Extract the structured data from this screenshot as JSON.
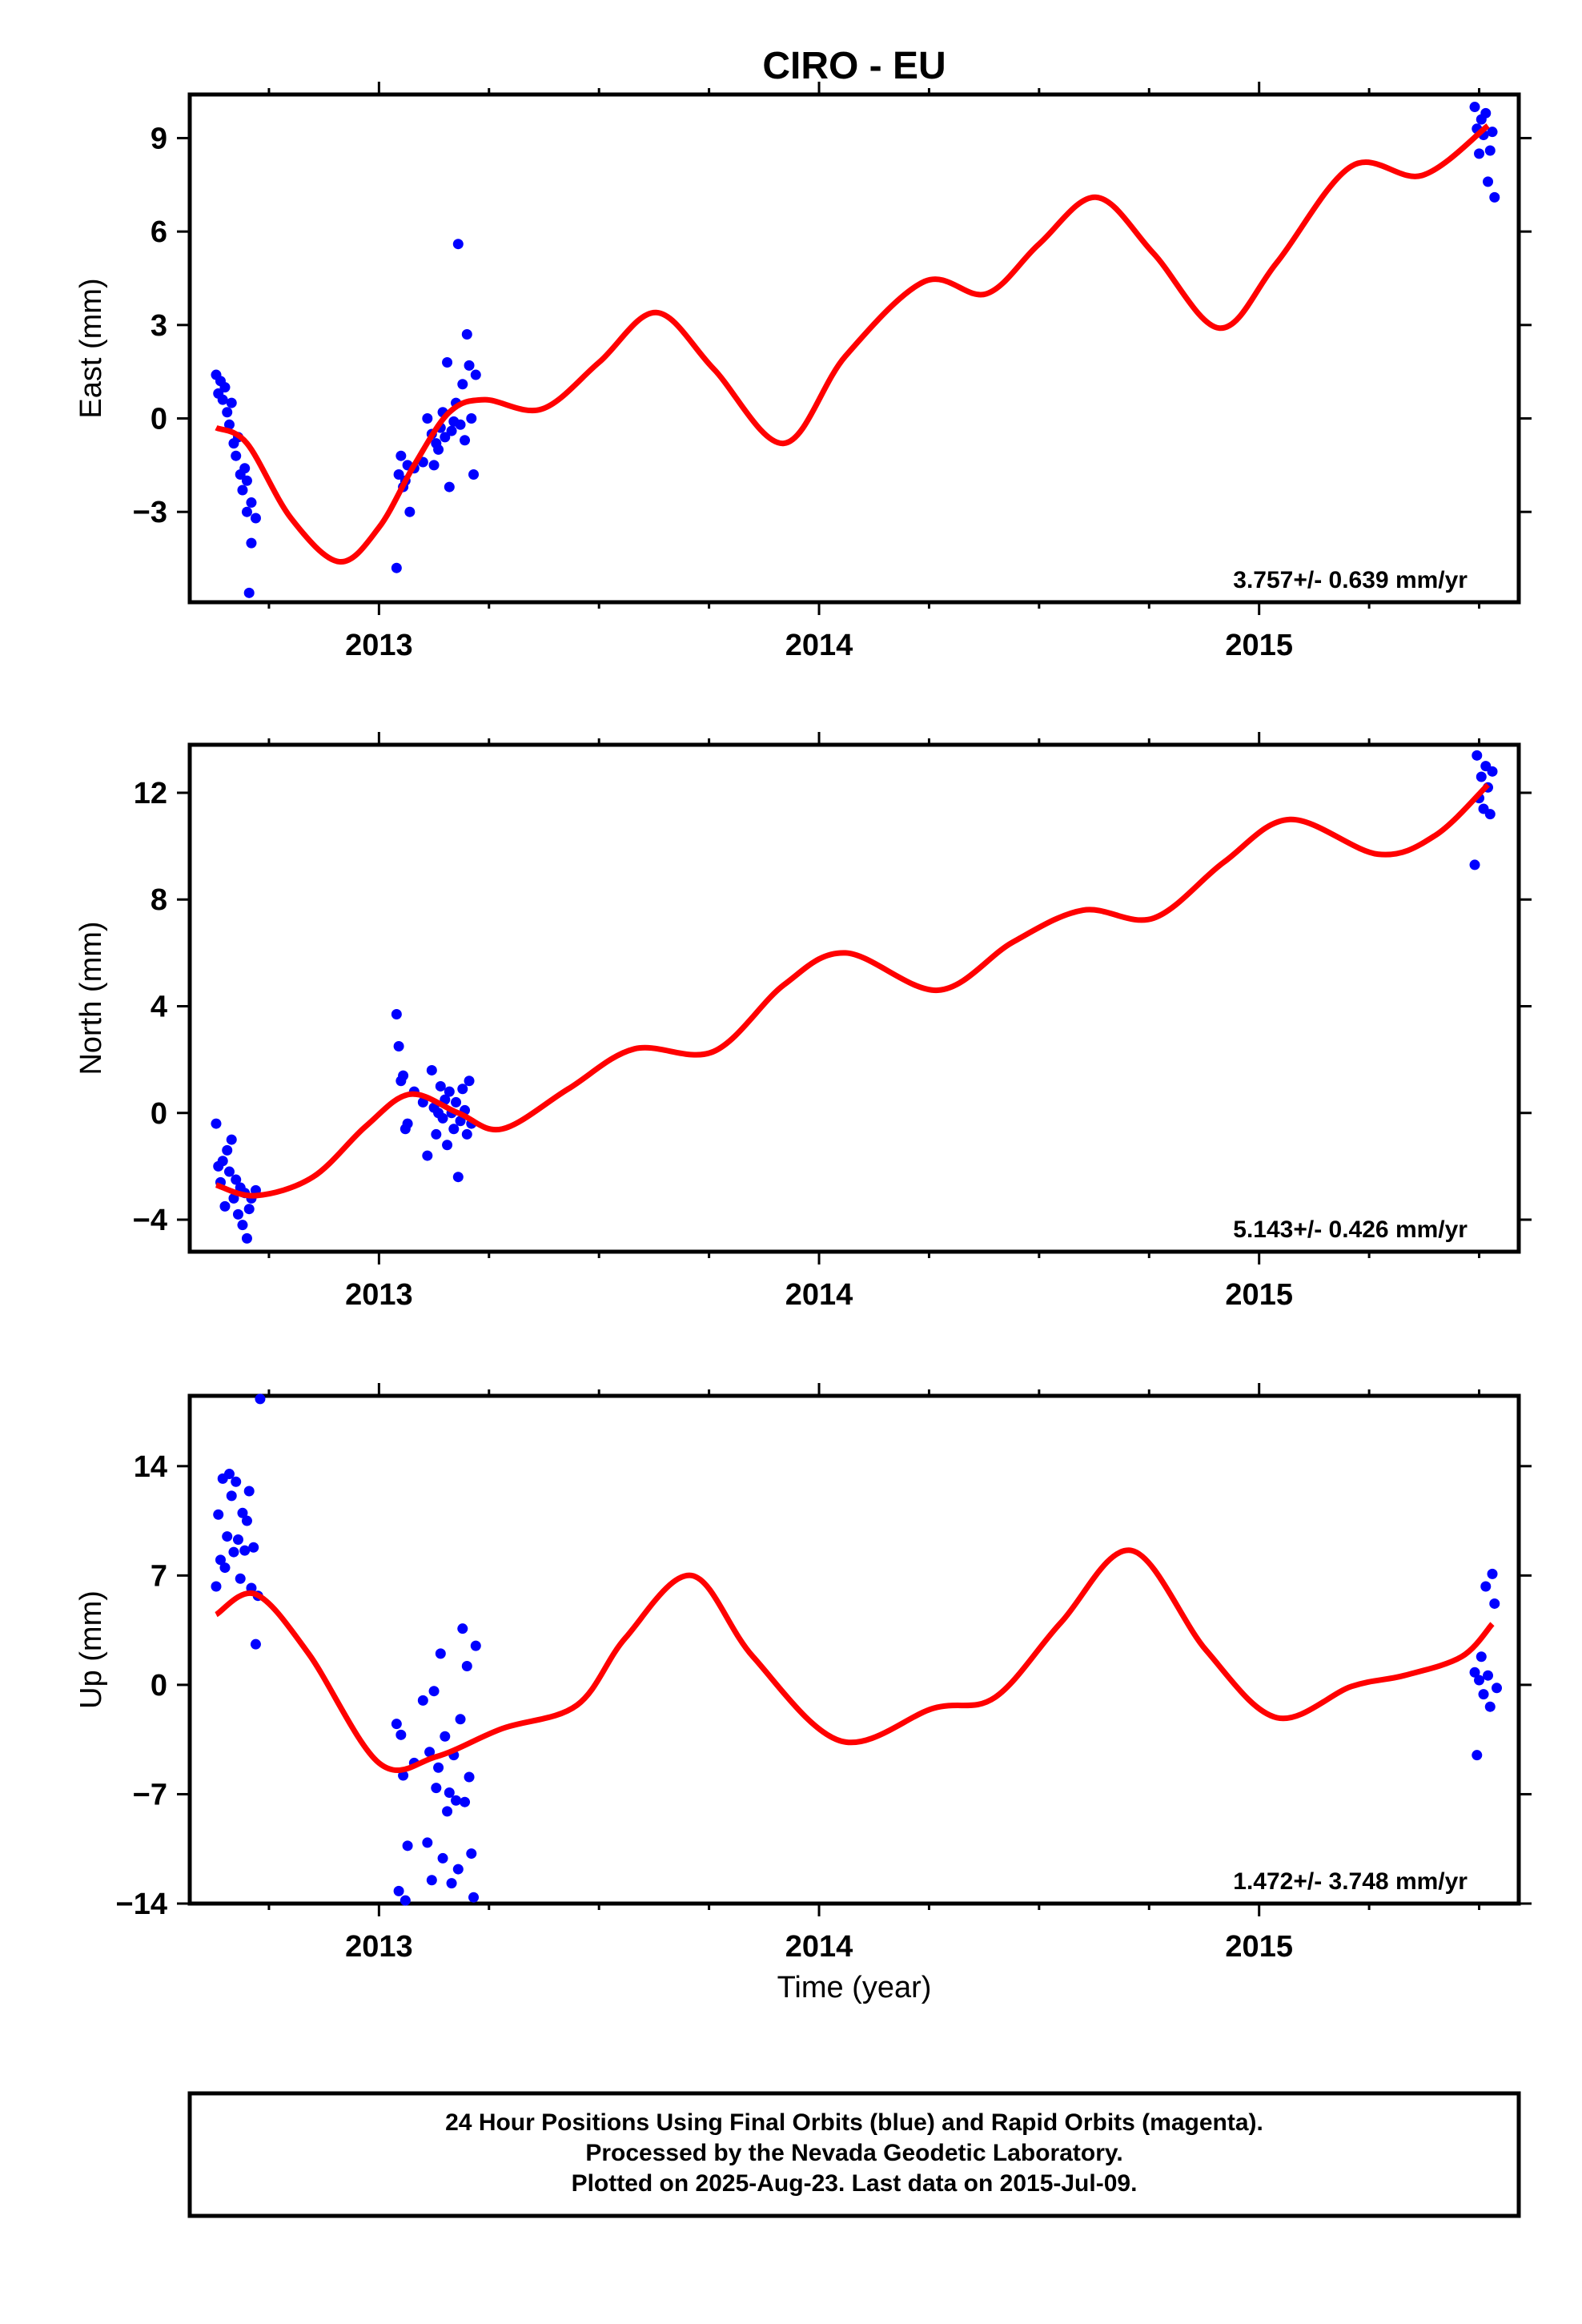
{
  "title": "CIRO - EU",
  "xlabel": "Time (year)",
  "footer": [
    "24 Hour Positions Using Final Orbits (blue) and Rapid Orbits (magenta).",
    "Processed by the Nevada Geodetic Laboratory.",
    "Plotted on 2025-Aug-23. Last data on 2015-Jul-09."
  ],
  "colors": {
    "data": "#0000ff",
    "model": "#ff0000",
    "frame": "#000000"
  },
  "chart_data": [
    {
      "type": "scatter",
      "ylabel": "East (mm)",
      "rate": "3.757+/- 0.639 mm/yr",
      "xlim": [
        2012.57,
        2015.59
      ],
      "ylim": [
        -5.9,
        10.4
      ],
      "xticks": [
        2013,
        2014,
        2015
      ],
      "yticks": [
        -3,
        0,
        3,
        6,
        9
      ],
      "grid": false,
      "series": [
        {
          "kind": "points",
          "x": [
            2012.63,
            2012.635,
            2012.64,
            2012.645,
            2012.65,
            2012.655,
            2012.66,
            2012.665,
            2012.67,
            2012.675,
            2012.68,
            2012.685,
            2012.69,
            2012.695,
            2012.7,
            2012.7,
            2012.705,
            2012.71,
            2012.71,
            2012.72,
            2013.04,
            2013.045,
            2013.05,
            2013.055,
            2013.06,
            2013.065,
            2013.07,
            2013.08,
            2013.1,
            2013.11,
            2013.12,
            2013.125,
            2013.13,
            2013.135,
            2013.14,
            2013.145,
            2013.15,
            2013.155,
            2013.16,
            2013.165,
            2013.17,
            2013.175,
            2013.18,
            2013.185,
            2013.19,
            2013.195,
            2013.2,
            2013.205,
            2013.21,
            2013.215,
            2013.22,
            2015.49,
            2015.495,
            2015.5,
            2015.505,
            2015.51,
            2015.515,
            2015.52,
            2015.525,
            2015.53,
            2015.535
          ],
          "y": [
            1.4,
            0.8,
            1.2,
            0.6,
            1.0,
            0.2,
            -0.2,
            0.5,
            -0.8,
            -1.2,
            -0.6,
            -1.8,
            -2.3,
            -1.6,
            -2.0,
            -3.0,
            -5.6,
            -2.7,
            -4.0,
            -3.2,
            -4.8,
            -1.8,
            -1.2,
            -2.2,
            -2.0,
            -1.5,
            -3.0,
            -1.6,
            -1.4,
            0.0,
            -0.5,
            -1.5,
            -0.8,
            -1.0,
            -0.3,
            0.2,
            -0.6,
            1.8,
            -2.2,
            -0.4,
            -0.1,
            0.5,
            5.6,
            -0.2,
            1.1,
            -0.7,
            2.7,
            1.7,
            0.0,
            -1.8,
            1.4,
            10.0,
            9.3,
            8.5,
            9.6,
            9.1,
            9.8,
            7.6,
            8.6,
            9.2,
            7.1
          ]
        },
        {
          "kind": "line",
          "x": [
            2012.63,
            2012.7,
            2012.8,
            2012.91,
            2013.0,
            2013.08,
            2013.16,
            2013.24,
            2013.37,
            2013.5,
            2013.63,
            2013.76,
            2013.92,
            2014.06,
            2014.24,
            2014.38,
            2014.5,
            2014.63,
            2014.76,
            2014.91,
            2015.04,
            2015.21,
            2015.37,
            2015.52
          ],
          "y": [
            -0.3,
            -0.8,
            -3.2,
            -4.6,
            -3.5,
            -1.5,
            0.2,
            0.6,
            0.3,
            1.8,
            3.4,
            1.6,
            -0.8,
            2.0,
            4.4,
            4.0,
            5.6,
            7.1,
            5.3,
            2.9,
            5.0,
            8.1,
            7.8,
            9.4
          ]
        }
      ]
    },
    {
      "type": "scatter",
      "ylabel": "North (mm)",
      "rate": "5.143+/- 0.426 mm/yr",
      "xlim": [
        2012.57,
        2015.59
      ],
      "ylim": [
        -5.2,
        13.8
      ],
      "xticks": [
        2013,
        2014,
        2015
      ],
      "yticks": [
        -4,
        0,
        4,
        8,
        12
      ],
      "grid": false,
      "series": [
        {
          "kind": "points",
          "x": [
            2012.63,
            2012.635,
            2012.64,
            2012.645,
            2012.65,
            2012.655,
            2012.66,
            2012.665,
            2012.67,
            2012.675,
            2012.68,
            2012.685,
            2012.69,
            2012.695,
            2012.7,
            2012.705,
            2012.71,
            2012.72,
            2013.04,
            2013.045,
            2013.05,
            2013.055,
            2013.06,
            2013.065,
            2013.08,
            2013.1,
            2013.11,
            2013.12,
            2013.125,
            2013.13,
            2013.135,
            2013.14,
            2013.145,
            2013.15,
            2013.155,
            2013.16,
            2013.165,
            2013.17,
            2013.175,
            2013.18,
            2013.185,
            2013.19,
            2013.195,
            2013.2,
            2013.205,
            2013.21,
            2015.49,
            2015.495,
            2015.5,
            2015.505,
            2015.51,
            2015.515,
            2015.52,
            2015.525,
            2015.53
          ],
          "y": [
            -0.4,
            -2.0,
            -2.6,
            -1.8,
            -3.5,
            -1.4,
            -2.2,
            -1.0,
            -3.2,
            -2.5,
            -3.8,
            -2.8,
            -4.2,
            -3.0,
            -4.7,
            -3.6,
            -3.2,
            -2.9,
            3.7,
            2.5,
            1.2,
            1.4,
            -0.6,
            -0.4,
            0.8,
            0.4,
            -1.6,
            1.6,
            0.2,
            -0.8,
            0.0,
            1.0,
            -0.2,
            0.5,
            -1.2,
            0.8,
            0.0,
            -0.6,
            0.4,
            -2.4,
            -0.3,
            0.9,
            0.1,
            -0.8,
            1.2,
            -0.4,
            9.3,
            13.4,
            11.8,
            12.6,
            11.4,
            13.0,
            12.2,
            11.2,
            12.8
          ]
        },
        {
          "kind": "line",
          "x": [
            2012.63,
            2012.72,
            2012.85,
            2012.97,
            2013.07,
            2013.18,
            2013.28,
            2013.43,
            2013.58,
            2013.76,
            2013.92,
            2014.06,
            2014.27,
            2014.44,
            2014.6,
            2014.76,
            2014.92,
            2015.07,
            2015.27,
            2015.4,
            2015.52
          ],
          "y": [
            -2.7,
            -3.1,
            -2.4,
            -0.5,
            0.7,
            0.0,
            -0.6,
            0.9,
            2.4,
            2.3,
            4.8,
            6.0,
            4.6,
            6.4,
            7.6,
            7.3,
            9.4,
            11.0,
            9.7,
            10.4,
            12.3
          ]
        }
      ]
    },
    {
      "type": "scatter",
      "ylabel": "Up (mm)",
      "rate": "1.472+/- 3.748 mm/yr",
      "xlim": [
        2012.57,
        2015.59
      ],
      "ylim": [
        -14.0,
        18.5
      ],
      "xticks": [
        2013,
        2014,
        2015
      ],
      "yticks": [
        -14,
        -7,
        0,
        7,
        14
      ],
      "grid": false,
      "series": [
        {
          "kind": "points",
          "x": [
            2012.63,
            2012.635,
            2012.64,
            2012.645,
            2012.65,
            2012.655,
            2012.66,
            2012.665,
            2012.67,
            2012.675,
            2012.68,
            2012.685,
            2012.69,
            2012.695,
            2012.7,
            2012.705,
            2012.71,
            2012.715,
            2012.72,
            2012.725,
            2012.73,
            2013.04,
            2013.045,
            2013.05,
            2013.055,
            2013.06,
            2013.065,
            2013.08,
            2013.1,
            2013.11,
            2013.115,
            2013.12,
            2013.125,
            2013.13,
            2013.135,
            2013.14,
            2013.145,
            2013.15,
            2013.155,
            2013.16,
            2013.165,
            2013.17,
            2013.175,
            2013.18,
            2013.185,
            2013.19,
            2013.195,
            2013.2,
            2013.205,
            2013.21,
            2013.215,
            2013.22,
            2015.49,
            2015.495,
            2015.5,
            2015.505,
            2015.51,
            2015.515,
            2015.52,
            2015.525,
            2015.53,
            2015.535,
            2015.54
          ],
          "y": [
            6.3,
            10.9,
            8.0,
            13.2,
            7.5,
            9.5,
            13.5,
            12.1,
            8.5,
            13.0,
            9.3,
            6.8,
            11.0,
            8.6,
            10.5,
            12.4,
            6.2,
            8.8,
            2.6,
            5.7,
            18.3,
            -2.5,
            -13.2,
            -3.2,
            -5.8,
            -13.8,
            -10.3,
            -5.0,
            -1.0,
            -10.1,
            -4.3,
            -12.5,
            -0.4,
            -6.6,
            -5.3,
            2.0,
            -11.1,
            -3.3,
            -8.1,
            -6.9,
            -12.7,
            -4.5,
            -7.4,
            -11.8,
            -2.2,
            3.6,
            -7.5,
            1.2,
            -5.9,
            -10.8,
            -13.6,
            2.5,
            0.8,
            -4.5,
            0.3,
            1.8,
            -0.6,
            6.3,
            0.6,
            -1.4,
            7.1,
            5.2,
            -0.2
          ]
        },
        {
          "kind": "line",
          "x": [
            2012.63,
            2012.72,
            2012.84,
            2013.0,
            2013.13,
            2013.28,
            2013.45,
            2013.56,
            2013.71,
            2013.85,
            2014.05,
            2014.26,
            2014.4,
            2014.55,
            2014.71,
            2014.88,
            2015.04,
            2015.21,
            2015.33,
            2015.46,
            2015.53
          ],
          "y": [
            4.5,
            5.8,
            2.0,
            -5.0,
            -4.6,
            -2.8,
            -1.3,
            3.0,
            7.0,
            1.8,
            -3.6,
            -1.5,
            -0.8,
            4.0,
            8.6,
            2.2,
            -2.1,
            -0.1,
            0.6,
            1.8,
            3.9
          ]
        }
      ]
    }
  ]
}
